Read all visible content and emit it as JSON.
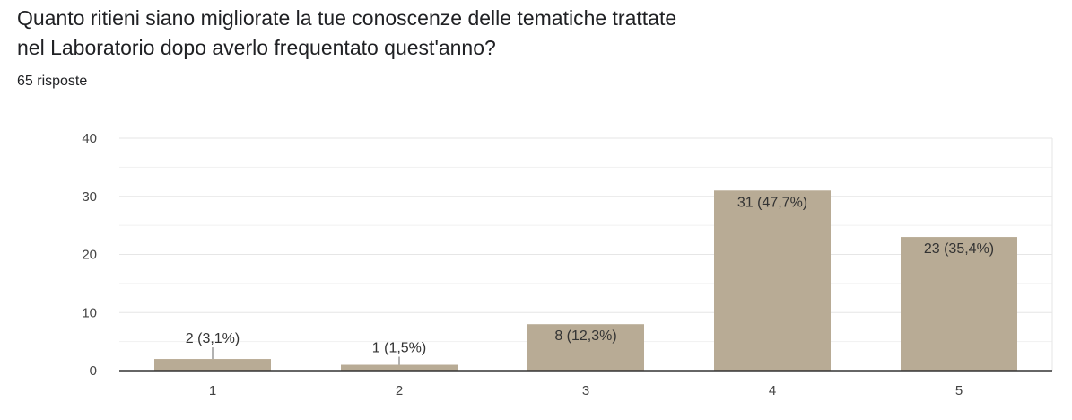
{
  "question": {
    "title_line1": "Quanto ritieni siano migliorate la tue conoscenze delle tematiche trattate",
    "title_line2": "nel Laboratorio dopo averlo frequentato quest'anno?",
    "responses": "65 risposte"
  },
  "colors": {
    "bar": "#b8ab95",
    "grid": "#e6e6e6",
    "axis": "#333333"
  },
  "chart_data": {
    "type": "bar",
    "categories": [
      "1",
      "2",
      "3",
      "4",
      "5"
    ],
    "values": [
      2,
      1,
      8,
      31,
      23
    ],
    "data_labels": [
      "2 (3,1%)",
      "1 (1,5%)",
      "8 (12,3%)",
      "31 (47,7%)",
      "23 (35,4%)"
    ],
    "yticks": [
      "0",
      "10",
      "20",
      "30",
      "40"
    ],
    "ylim": [
      0,
      40
    ],
    "grid": true,
    "legend": "none"
  }
}
